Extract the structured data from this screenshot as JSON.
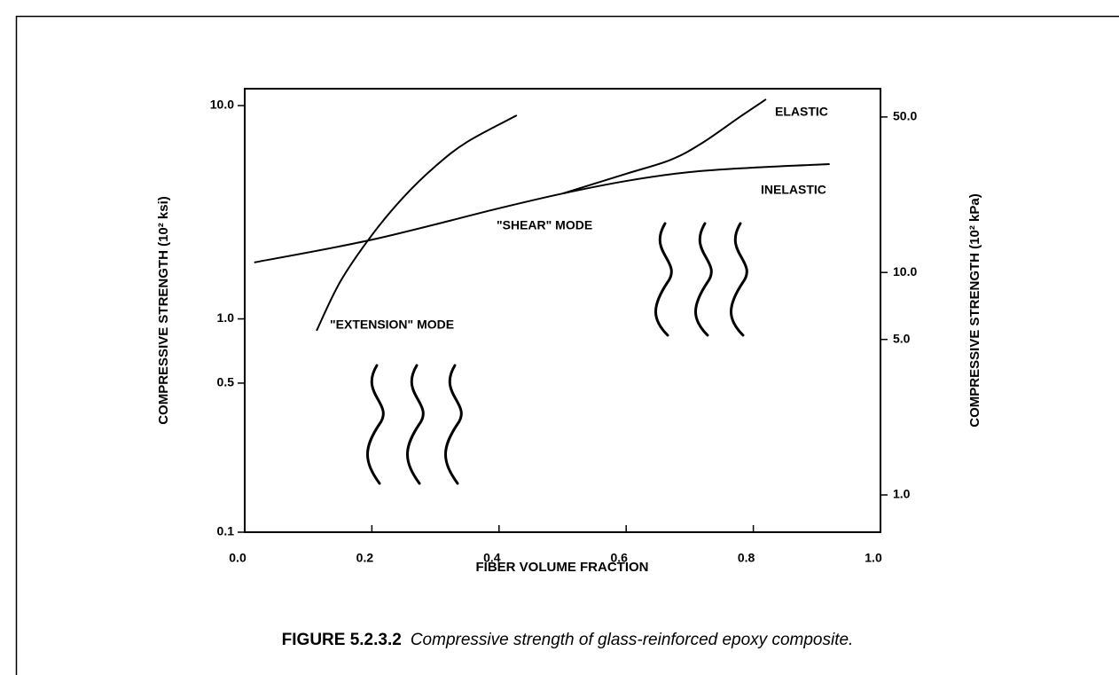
{
  "chart_data": {
    "type": "line",
    "x_label": "FIBER VOLUME FRACTION",
    "y_label": "COMPRESSIVE STRENGTH  (10² ksi)",
    "y2_label": "COMPRESSIVE STRENGTH  (10² kPa)",
    "caption_number": "FIGURE 5.2.3.2",
    "caption_text": "Compressive strength of glass-reinforced epoxy composite.",
    "log_y": true,
    "xlim": [
      0,
      1
    ],
    "xticks": [
      {
        "value": 0,
        "label": "0.0"
      },
      0.2,
      0.4,
      0.6,
      0.8,
      {
        "value": 1,
        "label": "1.0"
      }
    ],
    "ylim": [
      0.1,
      12
    ],
    "yticks": [
      0.1,
      0.5,
      {
        "value": 1,
        "label": "1.0"
      },
      {
        "value": 10,
        "label": "10.0"
      }
    ],
    "y2lim": [
      0.68,
      67
    ],
    "y2ticks": [
      {
        "value": 1,
        "label": "1.0"
      },
      {
        "value": 5,
        "label": "5.0"
      },
      {
        "value": 10,
        "label": "10.0"
      },
      {
        "value": 50,
        "label": "50.0"
      }
    ],
    "color": "#000000",
    "series": [
      {
        "x": [
          0.113,
          0.15,
          0.2,
          0.25,
          0.3,
          0.35,
          0.428
        ],
        "values": [
          0.88,
          1.49,
          2.47,
          3.73,
          5.2,
          6.76,
          9.0
        ]
      },
      {
        "x": [
          0.015,
          0.2,
          0.4,
          0.5,
          0.6,
          0.7,
          0.8,
          0.92
        ],
        "values": [
          1.84,
          2.35,
          3.3,
          3.87,
          4.43,
          4.88,
          5.12,
          5.32
        ]
      },
      {
        "x": [
          0.5,
          0.6,
          0.67,
          0.72,
          0.78,
          0.82
        ],
        "values": [
          3.87,
          4.79,
          5.57,
          6.69,
          8.9,
          10.7
        ]
      }
    ],
    "annotations": [
      "ELASTIC",
      "INELASTIC",
      "\"SHEAR\" MODE",
      "\"EXTENSION\" MODE"
    ]
  }
}
